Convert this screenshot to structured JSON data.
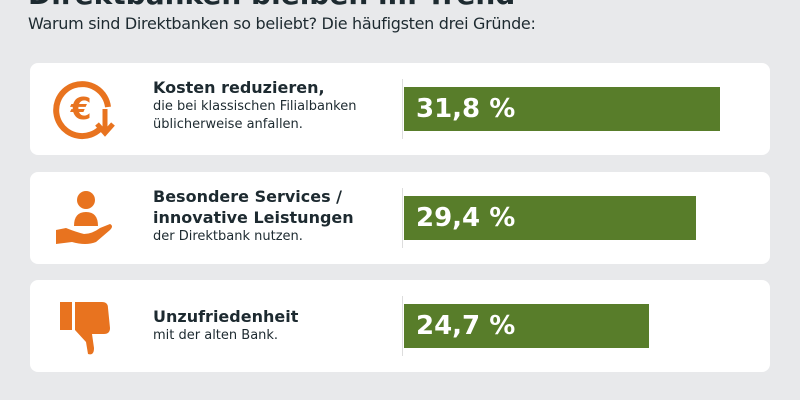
{
  "title": "Direktbanken bleiben im Trend",
  "subtitle": "Warum sind Direktbanken so beliebt? Die häufigsten drei Gründe:",
  "colors": {
    "accent": "#e8731f",
    "bar": "#587d2a",
    "background": "#e8e9eb"
  },
  "chart_data": {
    "type": "bar",
    "orientation": "horizontal",
    "categories": [
      "Kosten reduzieren",
      "Besondere Services / innovative Leistungen",
      "Unzufriedenheit"
    ],
    "values": [
      31.8,
      29.4,
      24.7
    ],
    "unit": "%",
    "items": [
      {
        "icon": "euro-down-icon",
        "heading": "Kosten reduzieren,",
        "lines": [
          "die bei klassischen Filialbanken",
          "üblicherweise anfallen."
        ],
        "label": "31,8 %"
      },
      {
        "icon": "hand-person-icon",
        "heading": "Besondere Services /",
        "heading2": "innovative Leistungen",
        "lines": [
          "der Direktbank nutzen."
        ],
        "label": "29,4 %"
      },
      {
        "icon": "thumbs-down-icon",
        "heading": "Unzufriedenheit",
        "lines": [
          "mit der alten Bank."
        ],
        "label": "24,7 %"
      }
    ]
  }
}
